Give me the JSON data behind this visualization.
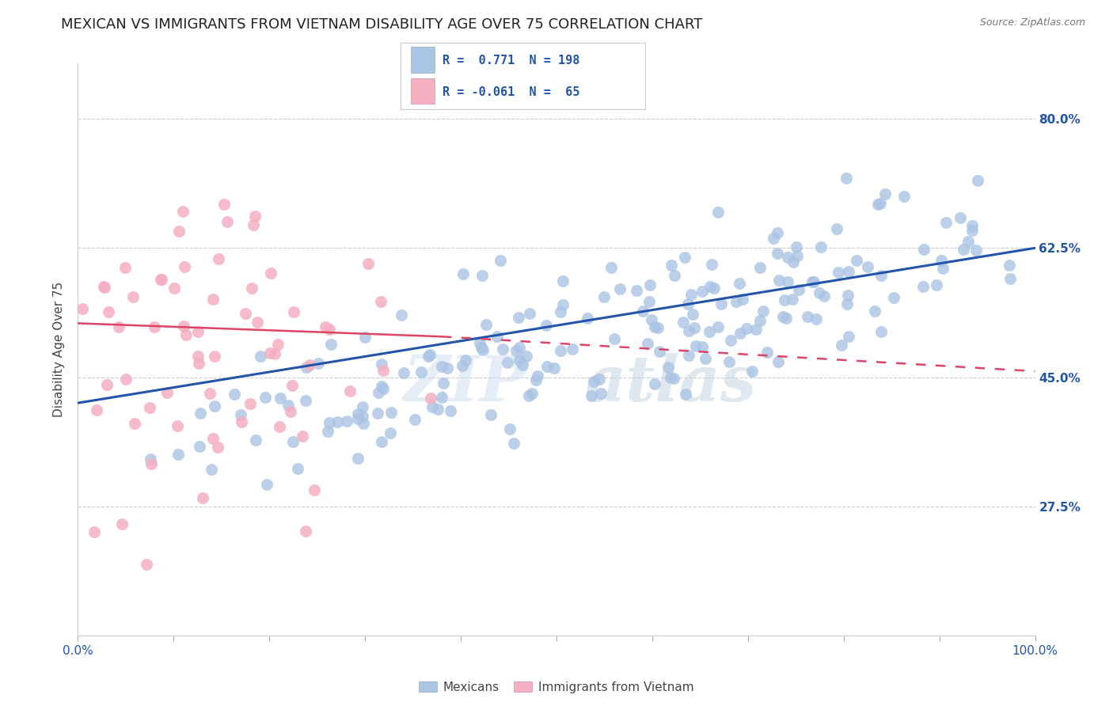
{
  "title": "MEXICAN VS IMMIGRANTS FROM VIETNAM DISABILITY AGE OVER 75 CORRELATION CHART",
  "source": "Source: ZipAtlas.com",
  "ylabel": "Disability Age Over 75",
  "xlim": [
    0.0,
    1.0
  ],
  "ylim": [
    0.1,
    0.875
  ],
  "ytick_positions": [
    0.275,
    0.45,
    0.625,
    0.8
  ],
  "ytick_labels": [
    "27.5%",
    "45.0%",
    "62.5%",
    "80.0%"
  ],
  "watermark_zip": "ZIP",
  "watermark_atlas": "atlas",
  "blue_R": 0.771,
  "blue_N": 198,
  "pink_R": -0.061,
  "pink_N": 65,
  "blue_color": "#aac4e4",
  "pink_color": "#f4afc0",
  "blue_line_color": "#2255aa",
  "pink_line_color": "#dd4466",
  "legend_text_color": "#2255aa",
  "n_color": "#dd3333",
  "background_color": "#ffffff",
  "grid_color": "#cccccc",
  "title_fontsize": 13,
  "axis_label_fontsize": 11,
  "tick_fontsize": 11,
  "seed": 42
}
